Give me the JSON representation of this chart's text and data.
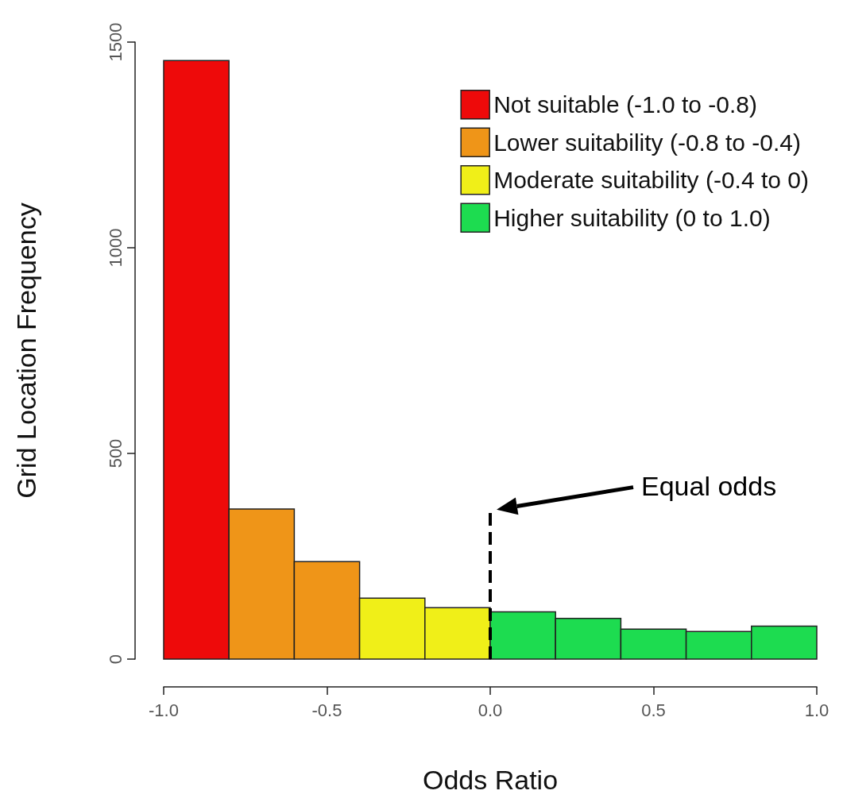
{
  "chart_data": {
    "type": "histogram",
    "xlabel": "Odds Ratio",
    "ylabel": "Grid Location Frequency",
    "bins": [
      -1.0,
      -0.8,
      -0.6,
      -0.4,
      -0.2,
      0.0,
      0.2,
      0.4,
      0.6,
      0.8,
      1.0
    ],
    "series": [
      {
        "name": "Not suitable (-1.0 to -0.8)",
        "color": "#ee0a0a",
        "values": [
          1455,
          null,
          null,
          null,
          null,
          null,
          null,
          null,
          null,
          null
        ]
      },
      {
        "name": "Lower suitability (-0.8 to -0.4)",
        "color": "#ef9518",
        "values": [
          null,
          365,
          237,
          null,
          null,
          null,
          null,
          null,
          null,
          null
        ]
      },
      {
        "name": "Moderate suitability (-0.4 to 0)",
        "color": "#f0ef18",
        "values": [
          null,
          null,
          null,
          148,
          125,
          null,
          null,
          null,
          null,
          null
        ]
      },
      {
        "name": "Higher suitability (0 to 1.0)",
        "color": "#1ddc50",
        "values": [
          null,
          null,
          null,
          null,
          null,
          115,
          99,
          73,
          67,
          80
        ]
      }
    ],
    "xlim": [
      -1.0,
      1.0
    ],
    "xticks": [
      {
        "value": -1,
        "label": "-1.0"
      },
      {
        "value": -0.5,
        "label": "-0.5"
      },
      {
        "value": 0,
        "label": "0.0"
      },
      {
        "value": 0.5,
        "label": "0.5"
      },
      {
        "value": 1,
        "label": "1.0"
      }
    ],
    "ylim": [
      0,
      1500
    ],
    "yticks": [
      0,
      500,
      1000,
      1500
    ],
    "ref_lines": [
      {
        "axis": "x",
        "value": 0,
        "line_style": "dashed",
        "color": "#000000"
      }
    ],
    "annotations": [
      "Equal odds"
    ],
    "legend": "top right",
    "grid": false
  }
}
